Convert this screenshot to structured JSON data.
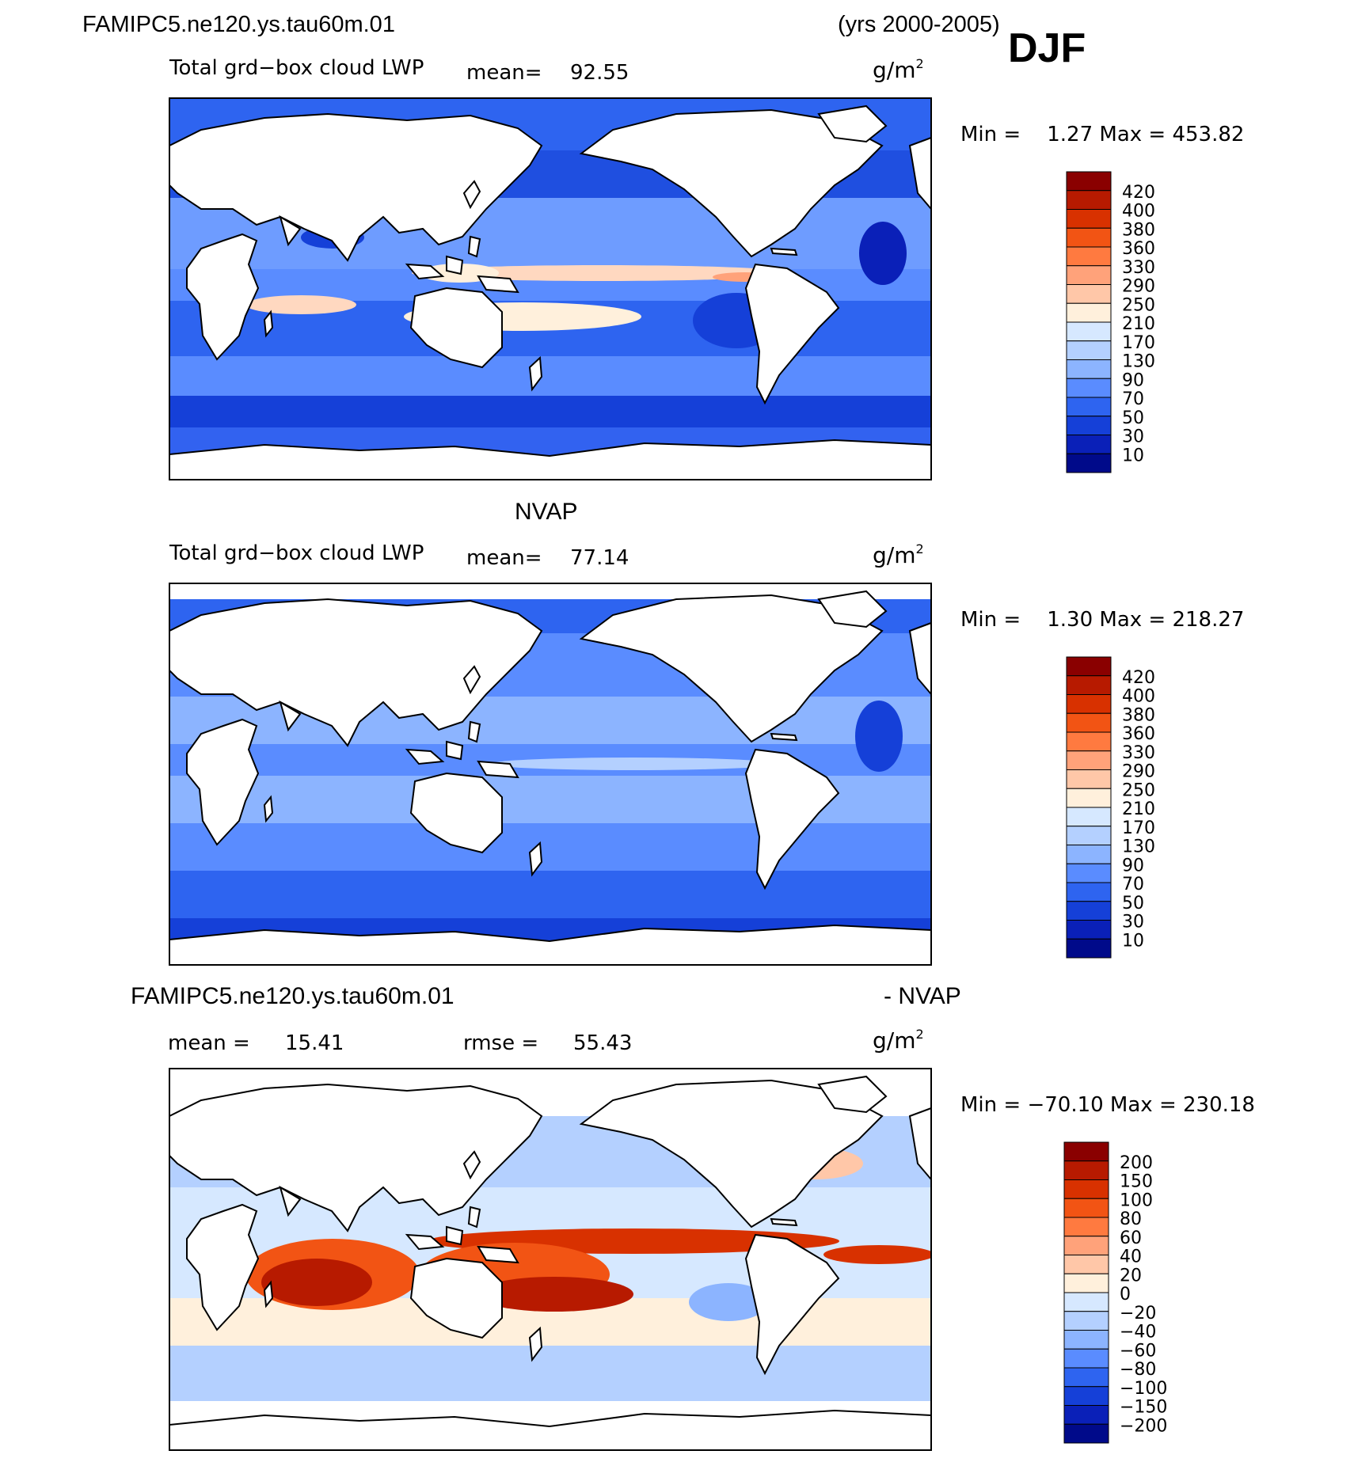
{
  "header": {
    "case_name": "FAMIPC5.ne120.ys.tau60m.01",
    "years": "(yrs 2000-2005)",
    "season": "DJF"
  },
  "units": "g/m",
  "units_exp": "2",
  "panels": [
    {
      "id": "model",
      "field_label": "Total grd−box cloud LWP",
      "mean_text": "mean=",
      "mean_value": "92.55",
      "min_max": "Min =    1.27 Max = 453.82",
      "colorbar_labels": [
        "420",
        "400",
        "380",
        "360",
        "330",
        "290",
        "250",
        "210",
        "170",
        "130",
        "90",
        "70",
        "50",
        "30",
        "10"
      ],
      "colorbar_colors": [
        "#8a0000",
        "#b71a00",
        "#d83100",
        "#f25414",
        "#ff7a40",
        "#ffa27a",
        "#ffc7a8",
        "#fff0dc",
        "#d6e8ff",
        "#b4d0ff",
        "#8cb4ff",
        "#5a8cff",
        "#2e64f0",
        "#1540d8",
        "#0a20b8",
        "#000a8a"
      ]
    },
    {
      "id": "obs",
      "title": "NVAP",
      "field_label": "Total grd−box cloud LWP",
      "mean_text": "mean=",
      "mean_value": "77.14",
      "min_max": "Min =    1.30 Max = 218.27",
      "colorbar_labels": [
        "420",
        "400",
        "380",
        "360",
        "330",
        "290",
        "250",
        "210",
        "170",
        "130",
        "90",
        "70",
        "50",
        "30",
        "10"
      ],
      "colorbar_colors": [
        "#8a0000",
        "#b71a00",
        "#d83100",
        "#f25414",
        "#ff7a40",
        "#ffa27a",
        "#ffc7a8",
        "#fff0dc",
        "#d6e8ff",
        "#b4d0ff",
        "#8cb4ff",
        "#5a8cff",
        "#2e64f0",
        "#1540d8",
        "#0a20b8",
        "#000a8a"
      ]
    },
    {
      "id": "diff",
      "title_left": "FAMIPC5.ne120.ys.tau60m.01",
      "title_right": "- NVAP",
      "mean_text": "mean =",
      "mean_value": "15.41",
      "rmse_text": "rmse =",
      "rmse_value": "55.43",
      "min_max": "Min = −70.10 Max = 230.18",
      "colorbar_labels": [
        "200",
        "150",
        "100",
        "80",
        "60",
        "40",
        "20",
        "0",
        "−20",
        "−40",
        "−60",
        "−80",
        "−100",
        "−150",
        "−200"
      ],
      "colorbar_colors": [
        "#8a0000",
        "#b71a00",
        "#d83100",
        "#f25414",
        "#ff7a40",
        "#ffa27a",
        "#ffc7a8",
        "#fff0dc",
        "#d6e8ff",
        "#b4d0ff",
        "#8cb4ff",
        "#5a8cff",
        "#2e64f0",
        "#1540d8",
        "#0a20b8",
        "#000a8a"
      ]
    }
  ]
}
